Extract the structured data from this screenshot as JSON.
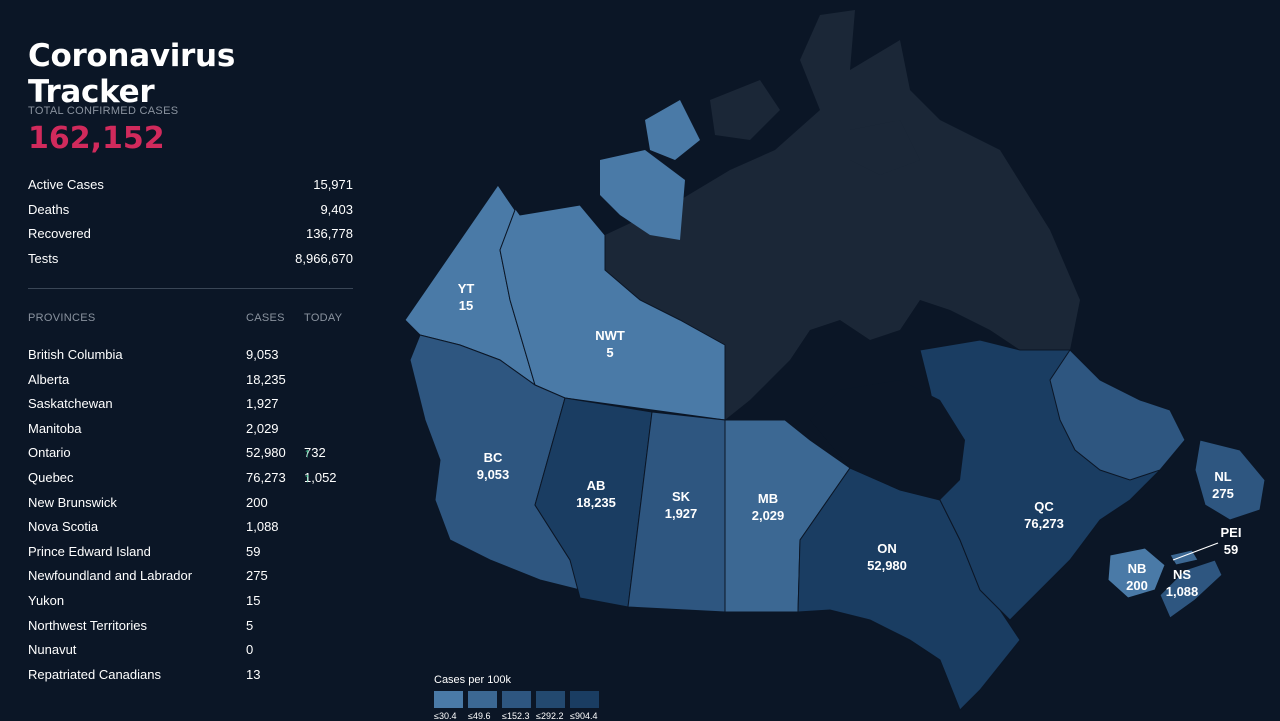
{
  "app": {
    "title": "Coronavirus Tracker"
  },
  "totals": {
    "label": "TOTAL CONFIRMED CASES",
    "value": "162,152",
    "stats": [
      {
        "label": "Active Cases",
        "value": "15,971"
      },
      {
        "label": "Deaths",
        "value": "9,403"
      },
      {
        "label": "Recovered",
        "value": "136,778"
      },
      {
        "label": "Tests",
        "value": "8,966,670"
      }
    ]
  },
  "provinces": {
    "headers": {
      "name": "PROVINCES",
      "cases": "CASES",
      "today": "TODAY"
    },
    "rows": [
      {
        "name": "British Columbia",
        "cases": "9,053",
        "today": ""
      },
      {
        "name": "Alberta",
        "cases": "18,235",
        "today": ""
      },
      {
        "name": "Saskatchewan",
        "cases": "1,927",
        "today": ""
      },
      {
        "name": "Manitoba",
        "cases": "2,029",
        "today": ""
      },
      {
        "name": "Ontario",
        "cases": "52,980",
        "today": "732"
      },
      {
        "name": "Quebec",
        "cases": "76,273",
        "today": "1,052"
      },
      {
        "name": "New Brunswick",
        "cases": "200",
        "today": ""
      },
      {
        "name": "Nova Scotia",
        "cases": "1,088",
        "today": ""
      },
      {
        "name": "Prince Edward Island",
        "cases": "59",
        "today": ""
      },
      {
        "name": "Newfoundland and Labrador",
        "cases": "275",
        "today": ""
      },
      {
        "name": "Yukon",
        "cases": "15",
        "today": ""
      },
      {
        "name": "Northwest Territories",
        "cases": "5",
        "today": ""
      },
      {
        "name": "Nunavut",
        "cases": "0",
        "today": ""
      },
      {
        "name": "Repatriated Canadians",
        "cases": "13",
        "today": ""
      }
    ]
  },
  "map": {
    "labels": {
      "yt": {
        "abbr": "YT",
        "value": "15"
      },
      "nwt": {
        "abbr": "NWT",
        "value": "5"
      },
      "bc": {
        "abbr": "BC",
        "value": "9,053"
      },
      "ab": {
        "abbr": "AB",
        "value": "18,235"
      },
      "sk": {
        "abbr": "SK",
        "value": "1,927"
      },
      "mb": {
        "abbr": "MB",
        "value": "2,029"
      },
      "on": {
        "abbr": "ON",
        "value": "52,980"
      },
      "qc": {
        "abbr": "QC",
        "value": "76,273"
      },
      "nl": {
        "abbr": "NL",
        "value": "275"
      },
      "pei": {
        "abbr": "PEI",
        "value": "59"
      },
      "nb": {
        "abbr": "NB",
        "value": "200"
      },
      "ns": {
        "abbr": "NS",
        "value": "1,088"
      }
    },
    "colors": {
      "tier1": "#4a7aa7",
      "tier2": "#3c6893",
      "tier3": "#2e5680",
      "tier4": "#23496f",
      "tier5": "#1a3d62",
      "nunavut": "#1b2737",
      "background": "#0b1626",
      "accent": "#d12a5c",
      "up_arrow": "#3fbf8f"
    }
  },
  "legend": {
    "title": "Cases per 100k",
    "items": [
      "≤30.4",
      "≤49.6",
      "≤152.3",
      "≤292.2",
      "≤904.4"
    ]
  }
}
